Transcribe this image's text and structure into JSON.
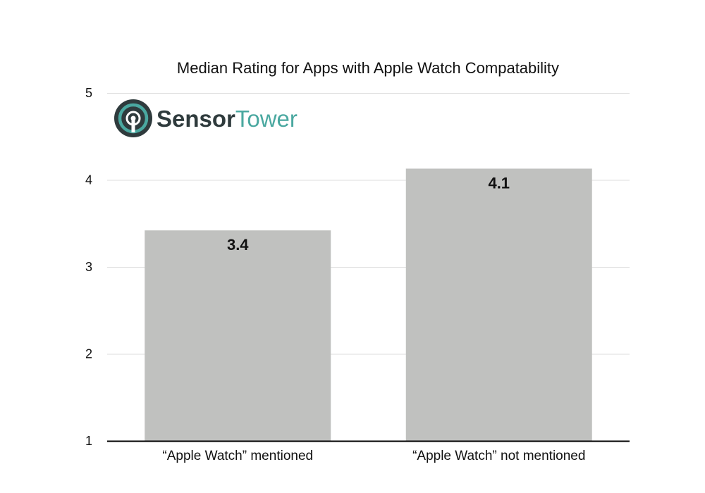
{
  "chart_data": {
    "type": "bar",
    "title": "Median Rating for Apps with Apple Watch Compatability",
    "categories": [
      "“Apple Watch” mentioned",
      "“Apple Watch” not mentioned"
    ],
    "values": [
      3.42,
      4.13
    ],
    "data_labels": [
      "3.4",
      "4.1"
    ],
    "xlabel": "",
    "ylabel": "",
    "ylim": [
      1,
      5
    ],
    "yticks": [
      1,
      2,
      3,
      4,
      5
    ],
    "grid": true,
    "legend": "none",
    "bar_color": "#c0c1bf",
    "grid_color": "#dedede",
    "axis_color": "#000000"
  },
  "logo": {
    "name": "sensortower-logo-icon",
    "text_part1": "Sensor",
    "text_part2": "Tower",
    "icon_outer_color": "#2f3b3d",
    "icon_inner_color": "#4aa8a0"
  }
}
